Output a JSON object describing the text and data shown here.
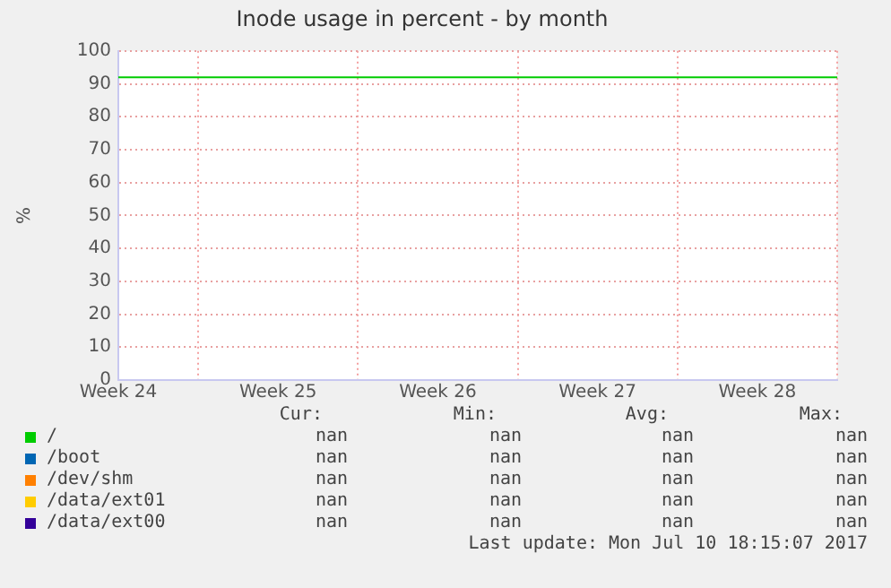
{
  "chart_data": {
    "type": "line",
    "title": "Inode usage in percent - by month",
    "ylabel": "%",
    "categories": [
      "Week 24",
      null,
      "Week 25",
      null,
      "Week 26",
      null,
      "Week 27",
      null,
      "Week 28",
      null
    ],
    "ylim": [
      0,
      100
    ],
    "yticks": [
      0,
      10,
      20,
      30,
      40,
      50,
      60,
      70,
      80,
      90,
      100
    ],
    "grid": true,
    "legend": "bottom",
    "series": [
      {
        "name": "/",
        "color": "#00cc00",
        "values": [
          92,
          92,
          92,
          92,
          92,
          92,
          92,
          92,
          92,
          92
        ]
      },
      {
        "name": "/boot",
        "color": "#0066b3",
        "values": [
          null,
          null,
          null,
          null,
          null,
          null,
          null,
          null,
          null,
          null
        ]
      },
      {
        "name": "/dev/shm",
        "color": "#ff8000",
        "values": [
          null,
          null,
          null,
          null,
          null,
          null,
          null,
          null,
          null,
          null
        ]
      },
      {
        "name": "/data/ext01",
        "color": "#ffcc00",
        "values": [
          null,
          null,
          null,
          null,
          null,
          null,
          null,
          null,
          null,
          null
        ]
      },
      {
        "name": "/data/ext00",
        "color": "#330099",
        "values": [
          null,
          null,
          null,
          null,
          null,
          null,
          null,
          null,
          null,
          null
        ]
      }
    ],
    "annotations": [
      "Cur:",
      "Min:",
      "Avg:",
      "Max:",
      "nan",
      "nan",
      "nan",
      "nan",
      "nan",
      "nan",
      "nan",
      "nan",
      "nan",
      "nan",
      "nan",
      "nan",
      "nan",
      "nan",
      "nan",
      "nan",
      "nan",
      "nan",
      "nan",
      "nan",
      "Last update:  Mon Jul 10 18:15:07 2017"
    ]
  }
}
